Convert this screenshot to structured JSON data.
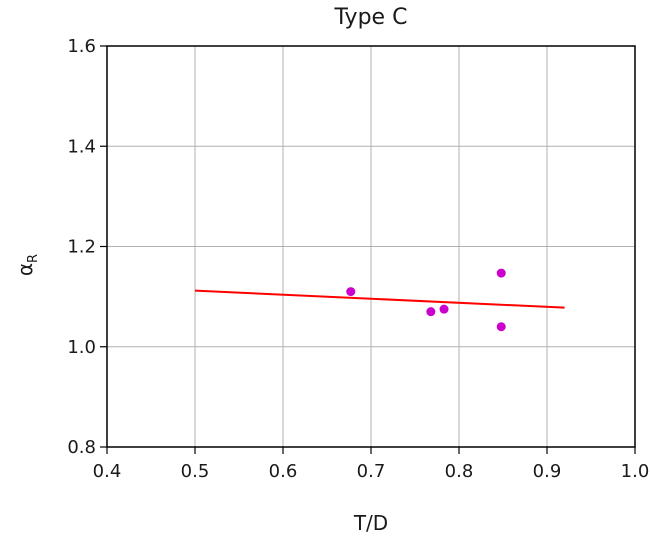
{
  "chart_data": {
    "type": "scatter",
    "title": "Type C",
    "xlabel": "T/D",
    "ylabel_main": "α",
    "ylabel_sub": "R",
    "xlim": [
      0.4,
      1.0
    ],
    "ylim": [
      0.8,
      1.6
    ],
    "xticks": [
      0.4,
      0.5,
      0.6,
      0.7,
      0.8,
      0.9,
      1.0
    ],
    "yticks": [
      0.8,
      1.0,
      1.2,
      1.4,
      1.6
    ],
    "xtick_labels": [
      "0.4",
      "0.5",
      "0.6",
      "0.7",
      "0.8",
      "0.9",
      "1.0"
    ],
    "ytick_labels": [
      "0.8",
      "1.0",
      "1.2",
      "1.4",
      "1.6"
    ],
    "grid": true,
    "points": {
      "color": "#cc00cc",
      "x": [
        0.677,
        0.768,
        0.783,
        0.848,
        0.848
      ],
      "y": [
        1.11,
        1.07,
        1.075,
        1.147,
        1.04
      ]
    },
    "fit_line": {
      "color": "#ff0000",
      "x": [
        0.5,
        0.92
      ],
      "y": [
        1.112,
        1.078
      ]
    }
  }
}
